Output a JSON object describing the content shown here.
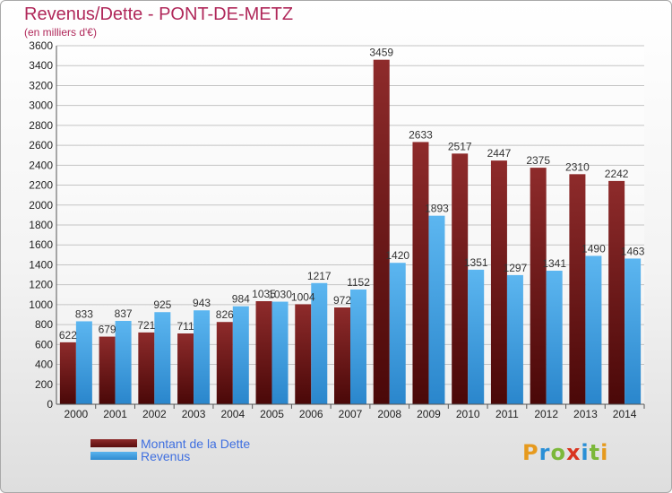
{
  "title": "Revenus/Dette - PONT-DE-METZ",
  "subtitle": "(en milliers d'€)",
  "logo": {
    "text": "Proxiti",
    "letters": [
      "P",
      "r",
      "o",
      "x",
      "i",
      "t",
      "i"
    ],
    "colors": [
      "#e69a1e",
      "#2a8fd6",
      "#7cb83a",
      "#d9341f",
      "#2a8fd6",
      "#7cb83a",
      "#e69a1e"
    ]
  },
  "colors": {
    "dette": "#7a1f1f",
    "revenus": "#3a9be0",
    "title": "#b0285a",
    "legend_text": "#3f6fe0"
  },
  "chart_data": {
    "type": "bar",
    "title": "Revenus/Dette - PONT-DE-METZ",
    "subtitle": "(en milliers d'€)",
    "categories": [
      "2000",
      "2001",
      "2002",
      "2003",
      "2004",
      "2005",
      "2006",
      "2007",
      "2008",
      "2009",
      "2010",
      "2011",
      "2012",
      "2013",
      "2014"
    ],
    "series": [
      {
        "name": "Montant de la Dette",
        "values": [
          622,
          679,
          721,
          711,
          826,
          1035,
          1004,
          972,
          3459,
          2633,
          2517,
          2447,
          2375,
          2310,
          2242
        ]
      },
      {
        "name": "Revenus",
        "values": [
          833,
          837,
          925,
          943,
          984,
          1030,
          1217,
          1152,
          1420,
          1893,
          1351,
          1297,
          1341,
          1490,
          1463
        ]
      }
    ],
    "ylim": [
      0,
      3600
    ],
    "yticks": [
      "0",
      "200",
      "400",
      "600",
      "800",
      "1000",
      "1200",
      "1400",
      "1600",
      "1800",
      "2000",
      "2200",
      "2400",
      "2600",
      "2800",
      "3000",
      "3200",
      "3400",
      "3600"
    ],
    "grid": true,
    "legend_position": "bottom-left"
  }
}
